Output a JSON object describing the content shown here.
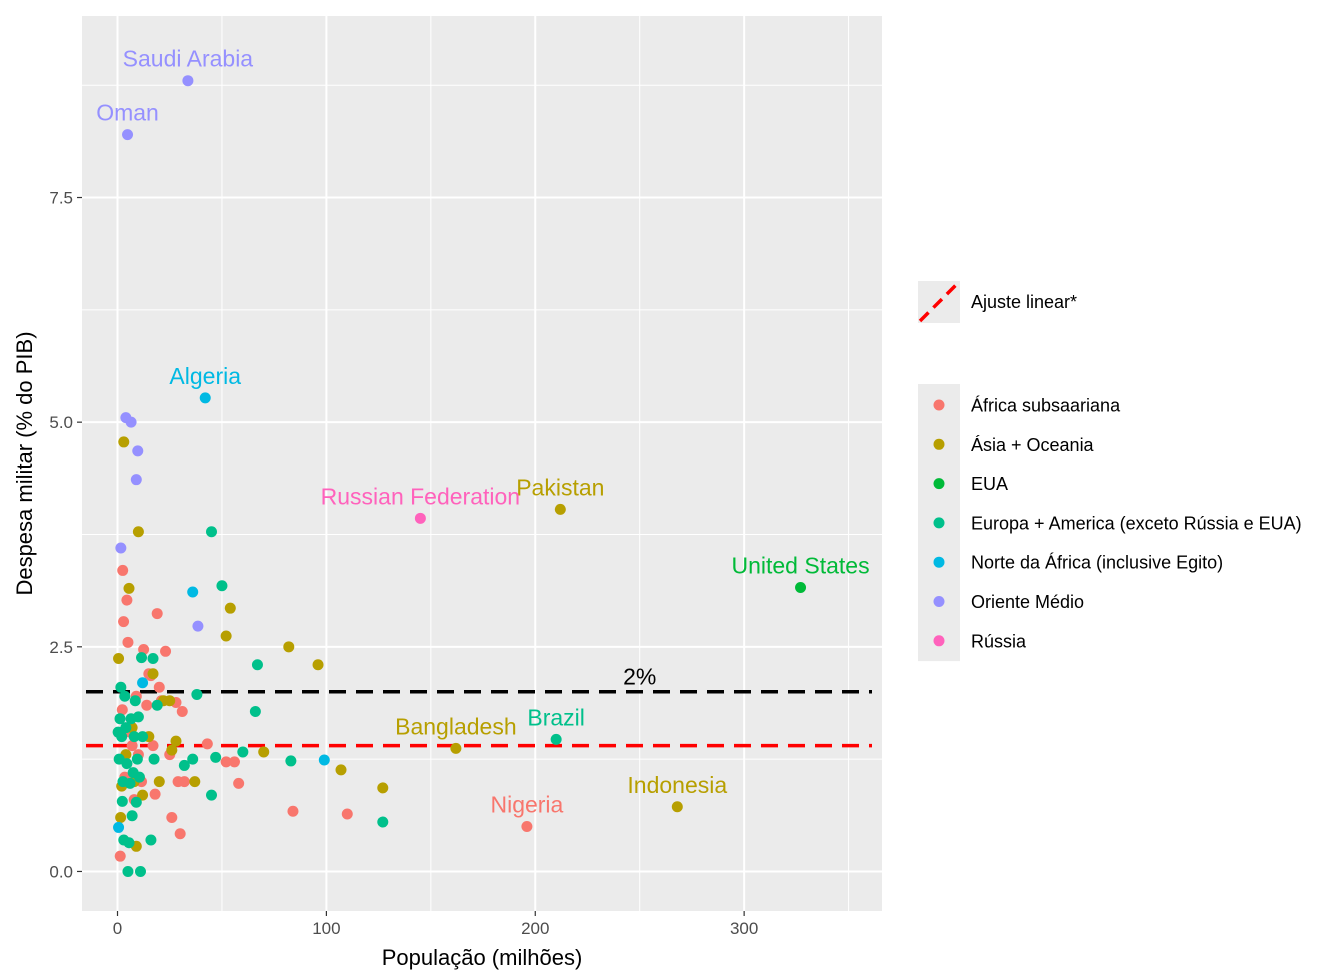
{
  "chart_data": {
    "type": "scatter",
    "xlabel": "População (milhões)",
    "ylabel": "Despesa militar (% do PIB)",
    "xlim": [
      -17,
      366
    ],
    "ylim": [
      -0.44,
      9.52
    ],
    "x_ticks": [
      0,
      100,
      200,
      300
    ],
    "x_tick_labels": [
      "0",
      "100",
      "200",
      "300"
    ],
    "y_ticks": [
      0,
      2.5,
      5.0,
      7.5
    ],
    "y_tick_labels": [
      "0.0",
      "2.5",
      "5.0",
      "7.5"
    ],
    "grid": true,
    "legend_position": "right",
    "colors": {
      "panel_bg": "#ebebeb",
      "grid": "#ffffff",
      "reference_line": "#000000",
      "fit_line": "#ff0000"
    },
    "reference_line": {
      "y": 2.0,
      "label": "2%",
      "color": "#000000",
      "style": "dashed"
    },
    "fit_line": {
      "y": 1.4,
      "legend_label": "Ajuste linear*",
      "color": "#ff0000",
      "style": "dashed"
    },
    "series": [
      {
        "name": "África subsaariana",
        "color": "#F8766D",
        "points": [
          [
            1.3,
            0.17
          ],
          [
            2.3,
            1.8
          ],
          [
            2.5,
            3.35
          ],
          [
            2.9,
            2.78
          ],
          [
            3.5,
            1.05
          ],
          [
            4.5,
            3.02
          ],
          [
            5.0,
            2.55
          ],
          [
            6.0,
            1.55
          ],
          [
            7.0,
            1.4
          ],
          [
            8.0,
            0.8
          ],
          [
            9.0,
            1.95
          ],
          [
            10.0,
            1.3
          ],
          [
            11.5,
            1.0
          ],
          [
            12.5,
            2.47
          ],
          [
            14.0,
            1.85
          ],
          [
            15.0,
            2.2
          ],
          [
            16.0,
            2.18
          ],
          [
            17.0,
            1.4
          ],
          [
            18.0,
            0.86
          ],
          [
            19.0,
            2.87
          ],
          [
            20.0,
            2.05
          ],
          [
            21.0,
            1.9
          ],
          [
            23.0,
            2.45
          ],
          [
            25.0,
            1.3
          ],
          [
            26.0,
            0.6
          ],
          [
            28.0,
            1.88
          ],
          [
            29.0,
            1.0
          ],
          [
            30.0,
            0.42
          ],
          [
            31.0,
            1.78
          ],
          [
            32.0,
            1.0
          ],
          [
            43.0,
            1.42
          ],
          [
            52.0,
            1.22
          ],
          [
            56.0,
            1.22
          ],
          [
            58.0,
            0.98
          ],
          [
            84.0,
            0.67
          ],
          [
            110.0,
            0.64
          ],
          [
            196.0,
            0.5
          ]
        ],
        "labels": [
          {
            "x": 196.0,
            "y": 0.5,
            "text": "Nigeria"
          }
        ]
      },
      {
        "name": "Ásia + Oceania",
        "color": "#B79F00",
        "points": [
          [
            0.5,
            2.37
          ],
          [
            1.5,
            0.6
          ],
          [
            2.0,
            0.95
          ],
          [
            3.0,
            4.78
          ],
          [
            4.0,
            1.3
          ],
          [
            5.5,
            3.15
          ],
          [
            7.0,
            1.6
          ],
          [
            8.0,
            1.0
          ],
          [
            9.0,
            0.28
          ],
          [
            10.0,
            3.78
          ],
          [
            12.0,
            0.85
          ],
          [
            15.0,
            1.5
          ],
          [
            17.0,
            2.2
          ],
          [
            20.0,
            1.0
          ],
          [
            22.0,
            1.9
          ],
          [
            25.0,
            1.9
          ],
          [
            26.0,
            1.35
          ],
          [
            28.0,
            1.45
          ],
          [
            37.0,
            1.0
          ],
          [
            52.0,
            2.62
          ],
          [
            54.0,
            2.93
          ],
          [
            70.0,
            1.33
          ],
          [
            82.0,
            2.5
          ],
          [
            96.0,
            2.3
          ],
          [
            107.0,
            1.13
          ],
          [
            127.0,
            0.93
          ],
          [
            162.0,
            1.37
          ],
          [
            212.0,
            4.03
          ],
          [
            268.0,
            0.72
          ]
        ],
        "labels": [
          {
            "x": 212.0,
            "y": 4.03,
            "text": "Pakistan"
          },
          {
            "x": 162.0,
            "y": 1.37,
            "text": "Bangladesh"
          },
          {
            "x": 268.0,
            "y": 0.72,
            "text": "Indonesia"
          }
        ]
      },
      {
        "name": "EUA",
        "color": "#00BA38",
        "points": [
          [
            327.0,
            3.16
          ]
        ],
        "labels": [
          {
            "x": 327.0,
            "y": 3.16,
            "text": "United States"
          }
        ]
      },
      {
        "name": "Europa + America (exceto Rússia e EUA)",
        "color": "#00C08B",
        "points": [
          [
            0.3,
            1.55
          ],
          [
            0.8,
            1.25
          ],
          [
            1.2,
            1.7
          ],
          [
            1.6,
            2.05
          ],
          [
            2.0,
            1.5
          ],
          [
            2.3,
            0.78
          ],
          [
            2.6,
            1.0
          ],
          [
            3.0,
            0.35
          ],
          [
            3.5,
            1.95
          ],
          [
            4.0,
            1.6
          ],
          [
            4.5,
            1.2
          ],
          [
            5.0,
            0.0
          ],
          [
            5.5,
            0.32
          ],
          [
            6.0,
            0.98
          ],
          [
            6.5,
            1.7
          ],
          [
            7.0,
            0.62
          ],
          [
            7.5,
            1.1
          ],
          [
            8.0,
            1.5
          ],
          [
            8.5,
            1.9
          ],
          [
            9.0,
            0.77
          ],
          [
            9.5,
            1.25
          ],
          [
            10.0,
            1.72
          ],
          [
            10.5,
            1.05
          ],
          [
            11.0,
            0.0
          ],
          [
            11.5,
            2.38
          ],
          [
            12.0,
            1.5
          ],
          [
            16.0,
            0.35
          ],
          [
            17.0,
            2.37
          ],
          [
            17.5,
            1.25
          ],
          [
            19.0,
            1.85
          ],
          [
            32.0,
            1.18
          ],
          [
            36.0,
            1.25
          ],
          [
            38.0,
            1.97
          ],
          [
            45.0,
            3.78
          ],
          [
            45.0,
            0.85
          ],
          [
            47.0,
            1.27
          ],
          [
            50.0,
            3.18
          ],
          [
            60.0,
            1.33
          ],
          [
            66.0,
            1.78
          ],
          [
            67.0,
            2.3
          ],
          [
            83.0,
            1.23
          ],
          [
            127.0,
            0.55
          ],
          [
            210.0,
            1.47
          ]
        ],
        "labels": [
          {
            "x": 210.0,
            "y": 1.47,
            "text": "Brazil"
          }
        ]
      },
      {
        "name": "Norte da África (inclusive Egito)",
        "color": "#00B9E3",
        "points": [
          [
            0.5,
            0.49
          ],
          [
            12.0,
            2.1
          ],
          [
            36.0,
            3.11
          ],
          [
            42.0,
            5.27
          ],
          [
            99.0,
            1.24
          ]
        ],
        "labels": [
          {
            "x": 42.0,
            "y": 5.27,
            "text": "Algeria"
          }
        ]
      },
      {
        "name": "Oriente Médio",
        "color": "#9590FF",
        "points": [
          [
            1.6,
            3.6
          ],
          [
            4.0,
            5.05
          ],
          [
            4.8,
            8.2
          ],
          [
            6.5,
            5.0
          ],
          [
            9.0,
            4.36
          ],
          [
            9.7,
            4.68
          ],
          [
            33.7,
            8.8
          ],
          [
            38.5,
            2.73
          ]
        ],
        "labels": [
          {
            "x": 33.7,
            "y": 8.8,
            "text": "Saudi Arabia"
          },
          {
            "x": 4.8,
            "y": 8.2,
            "text": "Oman"
          }
        ]
      },
      {
        "name": "Rússia",
        "color": "#FF62BC",
        "points": [
          [
            145.0,
            3.93
          ]
        ],
        "labels": [
          {
            "x": 145.0,
            "y": 3.93,
            "text": "Russian Federation"
          }
        ]
      }
    ]
  }
}
